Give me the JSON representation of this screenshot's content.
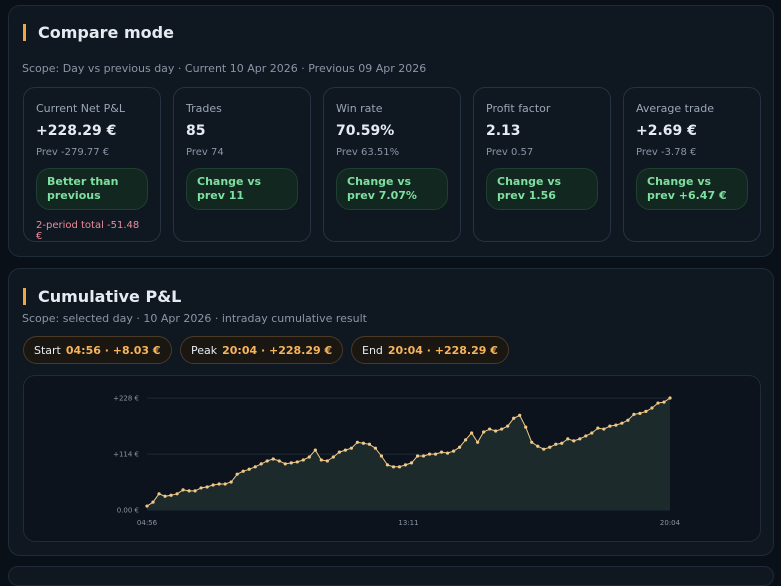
{
  "compare": {
    "title": "Compare mode",
    "scope": "Scope: Day vs previous day · Current 10 Apr 2026 · Previous 09 Apr 2026",
    "cards": [
      {
        "label": "Current Net P&L",
        "value": "+228.29 €",
        "prev": "Prev -279.77 €",
        "badge": "Better than previous",
        "note": "2-period total -51.48 €"
      },
      {
        "label": "Trades",
        "value": "85",
        "prev": "Prev 74",
        "badge": "Change vs prev 11"
      },
      {
        "label": "Win rate",
        "value": "70.59%",
        "prev": "Prev 63.51%",
        "badge": "Change vs prev 7.07%"
      },
      {
        "label": "Profit factor",
        "value": "2.13",
        "prev": "Prev 0.57",
        "badge": "Change vs prev 1.56"
      },
      {
        "label": "Average trade",
        "value": "+2.69 €",
        "prev": "Prev -3.78 €",
        "badge": "Change vs prev +6.47 €"
      }
    ]
  },
  "cumulative": {
    "title": "Cumulative P&L",
    "scope": "Scope: selected day · 10 Apr 2026 · intraday cumulative result",
    "pills": [
      {
        "label": "Start",
        "value": "04:56 · +8.03 €"
      },
      {
        "label": "Peak",
        "value": "20:04 · +228.29 €"
      },
      {
        "label": "End",
        "value": "20:04 · +228.29 €"
      }
    ],
    "chart": {
      "type": "line",
      "color": "#f0c98a",
      "values": [
        8.03,
        16,
        33,
        28,
        30,
        33,
        41,
        39,
        39,
        45,
        47,
        51,
        53,
        53,
        57,
        73,
        79,
        83,
        88,
        94,
        100,
        104,
        100,
        94,
        96,
        98,
        102,
        108,
        122,
        102,
        100,
        108,
        118,
        122,
        126,
        138,
        136,
        134,
        126,
        110,
        92,
        88,
        88,
        92,
        96,
        110,
        110,
        114,
        114,
        118,
        116,
        120,
        128,
        143,
        157,
        138,
        159,
        165,
        161,
        165,
        171,
        187,
        193,
        169,
        138,
        130,
        124,
        128,
        134,
        136,
        145,
        141,
        145,
        151,
        157,
        167,
        165,
        171,
        173,
        177,
        183,
        195,
        197,
        201,
        208,
        218,
        220,
        228.29
      ],
      "xlim": [
        0,
        87
      ],
      "xticks": [
        {
          "value": 0,
          "label": "04:56"
        },
        {
          "value": 43.5,
          "label": "13:11"
        },
        {
          "value": 87,
          "label": "20:04"
        }
      ],
      "ylim": [
        0,
        228.29
      ],
      "yticks": [
        {
          "value": 0,
          "label": "0.00 €"
        },
        {
          "value": 114,
          "label": "+114 €"
        },
        {
          "value": 228,
          "label": "+228 €"
        }
      ],
      "grid": true
    }
  }
}
